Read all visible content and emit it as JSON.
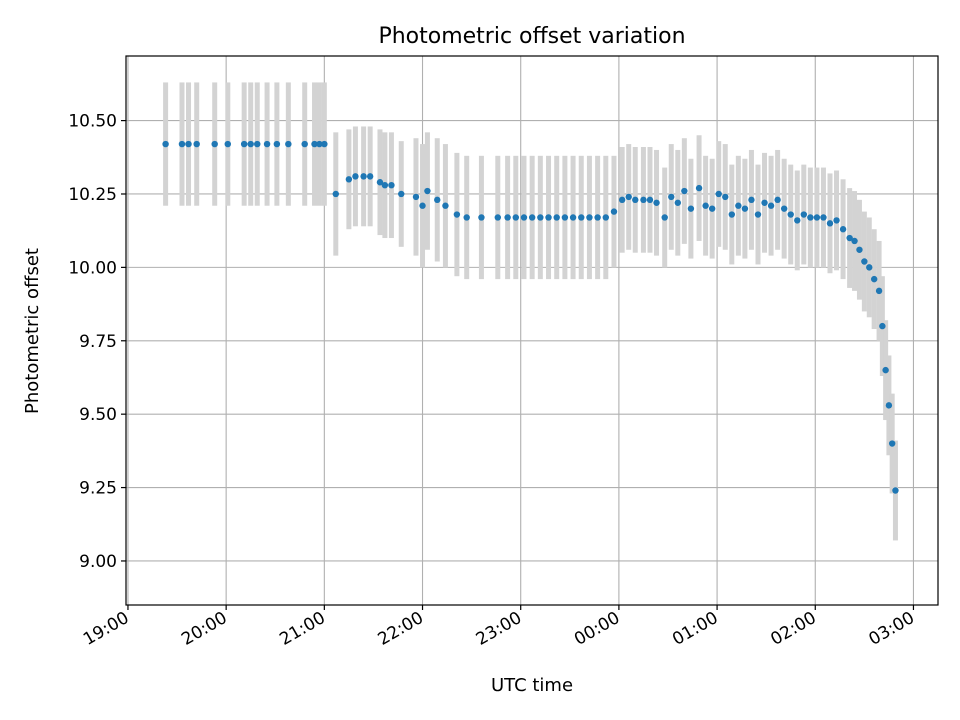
{
  "chart_data": {
    "type": "scatter",
    "title": "Photometric offset variation",
    "xlabel": "UTC time",
    "ylabel": "Photometric offset",
    "x_ticks": [
      "19:00",
      "20:00",
      "21:00",
      "22:00",
      "23:00",
      "00:00",
      "01:00",
      "02:00",
      "03:00"
    ],
    "x_tick_hours": [
      0,
      1,
      2,
      3,
      4,
      5,
      6,
      7,
      8
    ],
    "xlim_hours_from_1900": [
      -0.02,
      8.25
    ],
    "y_ticks": [
      9.0,
      9.25,
      9.5,
      9.75,
      10.0,
      10.25,
      10.5
    ],
    "y_tick_labels": [
      "9.00",
      "9.25",
      "9.50",
      "9.75",
      "10.00",
      "10.25",
      "10.50"
    ],
    "ylim": [
      8.85,
      10.72
    ],
    "grid": true,
    "colors": {
      "points": "#1f77b4",
      "errorbars": "#d3d3d3",
      "grid": "#b0b0b0"
    },
    "series": [
      {
        "times": [
          "19:23",
          "19:33",
          "19:37",
          "19:42",
          "19:53",
          "20:01",
          "20:11",
          "20:15",
          "20:19",
          "20:25",
          "20:31",
          "20:38",
          "20:48",
          "20:54",
          "20:57",
          "21:00",
          "21:07",
          "21:15",
          "21:19",
          "21:24",
          "21:28",
          "21:34",
          "21:37",
          "21:41",
          "21:47",
          "21:56",
          "22:00",
          "22:03",
          "22:09",
          "22:14",
          "22:21",
          "22:27",
          "22:36",
          "22:46",
          "22:52",
          "22:57",
          "23:02",
          "23:07",
          "23:12",
          "23:17",
          "23:22",
          "23:27",
          "23:32",
          "23:37",
          "23:42",
          "23:47",
          "23:52",
          "23:57",
          "00:02",
          "00:06",
          "00:10",
          "00:15",
          "00:19",
          "00:23",
          "00:28",
          "00:32",
          "00:36",
          "00:40",
          "00:44",
          "00:49",
          "00:53",
          "00:57",
          "01:01",
          "01:05",
          "01:09",
          "01:13",
          "01:17",
          "01:21",
          "01:25",
          "01:29",
          "01:33",
          "01:37",
          "01:41",
          "01:45",
          "01:49",
          "01:53",
          "01:57",
          "02:01",
          "02:05",
          "02:09",
          "02:13",
          "02:17",
          "02:21",
          "02:24",
          "02:27",
          "02:30",
          "02:33",
          "02:36",
          "02:39",
          "02:41",
          "02:43",
          "02:45",
          "02:47",
          "02:49"
        ],
        "y": [
          10.42,
          10.42,
          10.42,
          10.42,
          10.42,
          10.42,
          10.42,
          10.42,
          10.42,
          10.42,
          10.42,
          10.42,
          10.42,
          10.42,
          10.42,
          10.42,
          10.25,
          10.3,
          10.31,
          10.31,
          10.31,
          10.29,
          10.28,
          10.28,
          10.25,
          10.24,
          10.21,
          10.26,
          10.23,
          10.21,
          10.18,
          10.17,
          10.17,
          10.17,
          10.17,
          10.17,
          10.17,
          10.17,
          10.17,
          10.17,
          10.17,
          10.17,
          10.17,
          10.17,
          10.17,
          10.17,
          10.17,
          10.19,
          10.23,
          10.24,
          10.23,
          10.23,
          10.23,
          10.22,
          10.17,
          10.24,
          10.22,
          10.26,
          10.2,
          10.27,
          10.21,
          10.2,
          10.25,
          10.24,
          10.18,
          10.21,
          10.2,
          10.23,
          10.18,
          10.22,
          10.21,
          10.23,
          10.2,
          10.18,
          10.16,
          10.18,
          10.17,
          10.17,
          10.17,
          10.15,
          10.16,
          10.13,
          10.1,
          10.09,
          10.06,
          10.02,
          10.0,
          9.96,
          9.92,
          9.8,
          9.65,
          9.53,
          9.4,
          9.24
        ],
        "errors": [
          0.21,
          0.21,
          0.21,
          0.21,
          0.21,
          0.21,
          0.21,
          0.21,
          0.21,
          0.21,
          0.21,
          0.21,
          0.21,
          0.21,
          0.21,
          0.21,
          0.21,
          0.17,
          0.17,
          0.17,
          0.17,
          0.18,
          0.18,
          0.18,
          0.18,
          0.2,
          0.21,
          0.2,
          0.21,
          0.21,
          0.21,
          0.21,
          0.21,
          0.21,
          0.21,
          0.21,
          0.21,
          0.21,
          0.21,
          0.21,
          0.21,
          0.21,
          0.21,
          0.21,
          0.21,
          0.21,
          0.21,
          0.19,
          0.18,
          0.18,
          0.18,
          0.18,
          0.18,
          0.18,
          0.17,
          0.18,
          0.18,
          0.18,
          0.17,
          0.18,
          0.17,
          0.17,
          0.18,
          0.18,
          0.17,
          0.17,
          0.17,
          0.17,
          0.17,
          0.17,
          0.17,
          0.17,
          0.17,
          0.17,
          0.17,
          0.17,
          0.17,
          0.17,
          0.17,
          0.17,
          0.17,
          0.17,
          0.17,
          0.17,
          0.17,
          0.17,
          0.17,
          0.17,
          0.17,
          0.17,
          0.17,
          0.17,
          0.17,
          0.17
        ]
      }
    ]
  }
}
